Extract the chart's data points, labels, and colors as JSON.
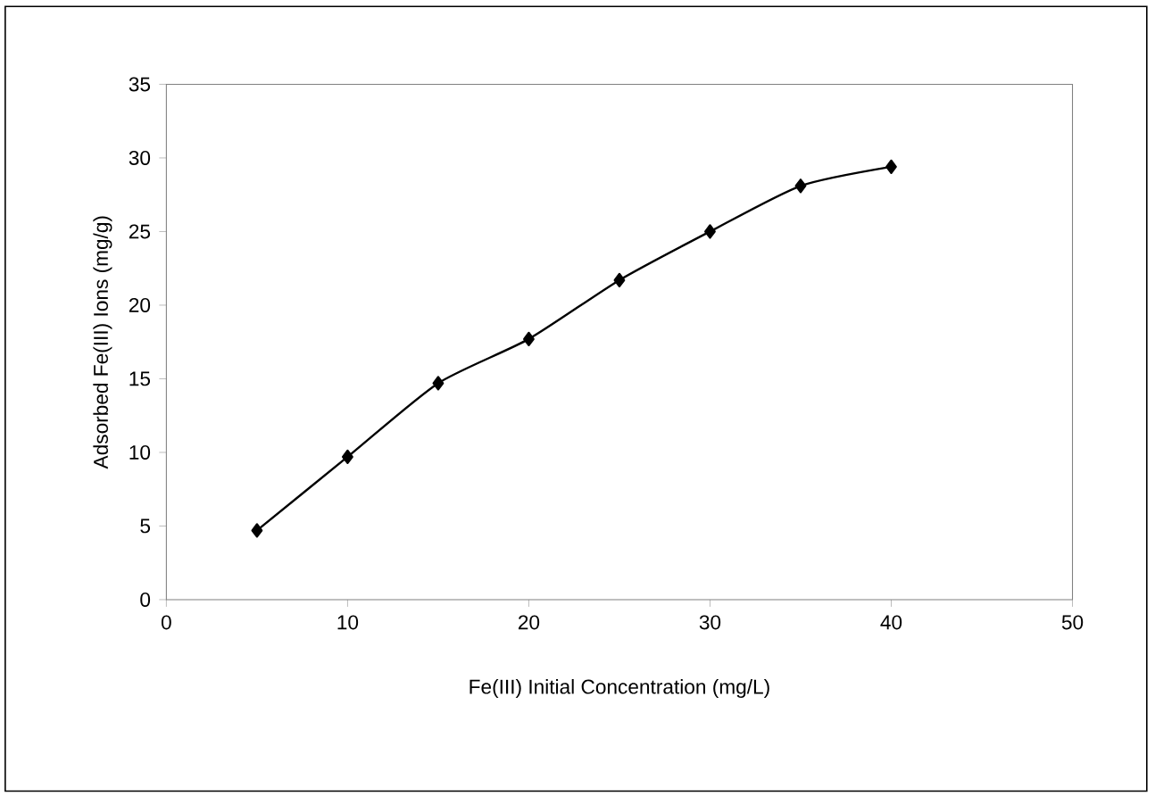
{
  "chart_data": {
    "type": "line",
    "xlabel": "Fe(III) Initial Concentration (mg/L)",
    "ylabel": "Adsorbed Fe(III) Ions (mg/g)",
    "x": [
      5,
      10,
      15,
      20,
      25,
      30,
      35,
      40
    ],
    "series": [
      {
        "color": "#000000",
        "values": [
          4.7,
          9.7,
          14.7,
          17.7,
          21.7,
          25.0,
          28.1,
          29.4
        ]
      }
    ],
    "xlim": [
      0,
      50
    ],
    "ylim": [
      0,
      35
    ],
    "xticks": [
      0,
      10,
      20,
      30,
      40,
      50
    ],
    "yticks": [
      0,
      5,
      10,
      15,
      20,
      25,
      30,
      35
    ],
    "marker": "diamond",
    "line_style": "solid"
  }
}
